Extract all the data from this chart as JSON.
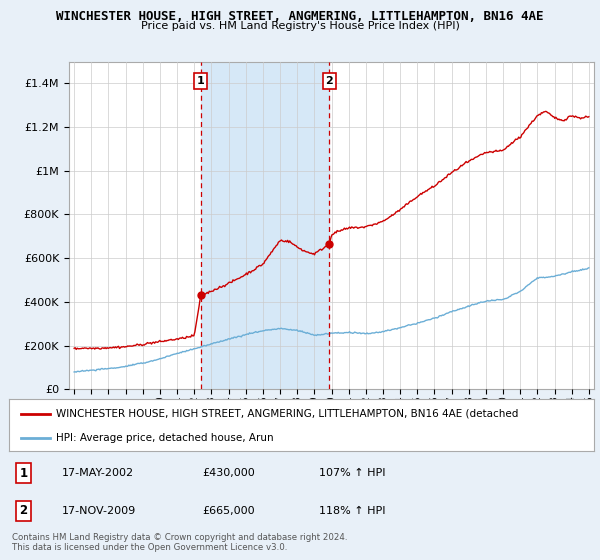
{
  "title": "WINCHESTER HOUSE, HIGH STREET, ANGMERING, LITTLEHAMPTON, BN16 4AE",
  "subtitle": "Price paid vs. HM Land Registry's House Price Index (HPI)",
  "ylim": [
    0,
    1500000
  ],
  "yticks": [
    0,
    200000,
    400000,
    600000,
    800000,
    1000000,
    1200000,
    1400000
  ],
  "ytick_labels": [
    "£0",
    "£200K",
    "£400K",
    "£600K",
    "£800K",
    "£1M",
    "£1.2M",
    "£1.4M"
  ],
  "hpi_color": "#6baed6",
  "price_color": "#cc0000",
  "shade_color": "#d6e8f7",
  "marker1_year": 2002.38,
  "marker1_price": 430000,
  "marker2_year": 2009.88,
  "marker2_price": 665000,
  "legend_line1": "WINCHESTER HOUSE, HIGH STREET, ANGMERING, LITTLEHAMPTON, BN16 4AE (detached",
  "legend_line2": "HPI: Average price, detached house, Arun",
  "footnote1": "Contains HM Land Registry data © Crown copyright and database right 2024.",
  "footnote2": "This data is licensed under the Open Government Licence v3.0.",
  "bg_color": "#e8f0f8",
  "plot_bg_color": "#ffffff",
  "vline_color": "#cc0000",
  "marker1_date": "17-MAY-2002",
  "marker1_pct": "107% ↑ HPI",
  "marker2_date": "17-NOV-2009",
  "marker2_pct": "118% ↑ HPI"
}
